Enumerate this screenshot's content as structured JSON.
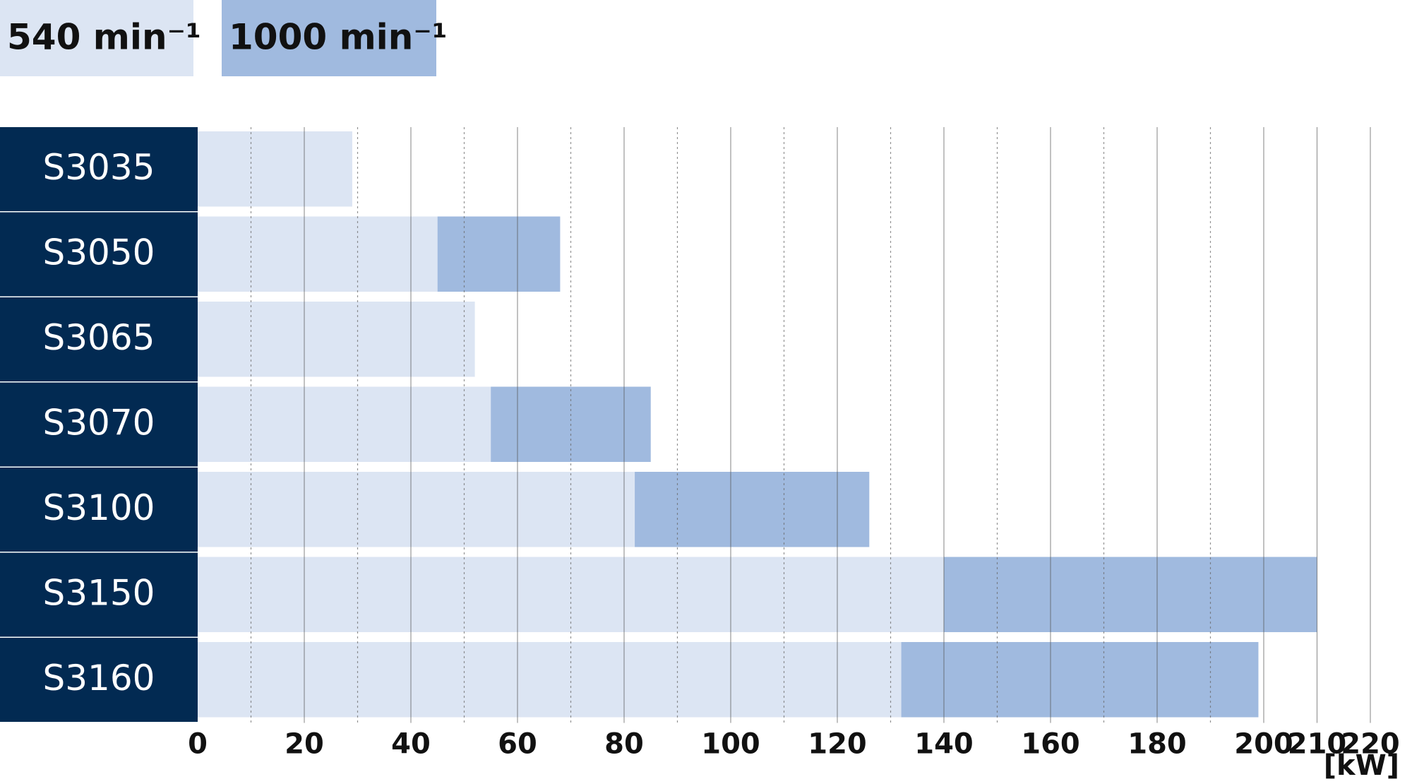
{
  "chart_data": {
    "type": "bar",
    "categories": [
      "S3035",
      "S3050",
      "S3065",
      "S3070",
      "S3100",
      "S3150",
      "S3160"
    ],
    "series": [
      {
        "name": "540 min⁻¹",
        "color": "#dce5f3",
        "values": [
          29,
          45,
          52,
          55,
          82,
          140,
          132
        ]
      },
      {
        "name": "1000 min⁻¹",
        "color": "#a0badf",
        "values": [
          null,
          68,
          null,
          85,
          126,
          210,
          199
        ]
      }
    ],
    "x_label": "[kW]",
    "xlim": [
      0,
      220
    ],
    "xticks": [
      0,
      20,
      40,
      60,
      80,
      100,
      120,
      140,
      160,
      180,
      200,
      210,
      220
    ],
    "minor_xticks": [
      10,
      30,
      50,
      70,
      90,
      110,
      130,
      150,
      170,
      190
    ],
    "label_color": "#022a52",
    "grid": true
  }
}
